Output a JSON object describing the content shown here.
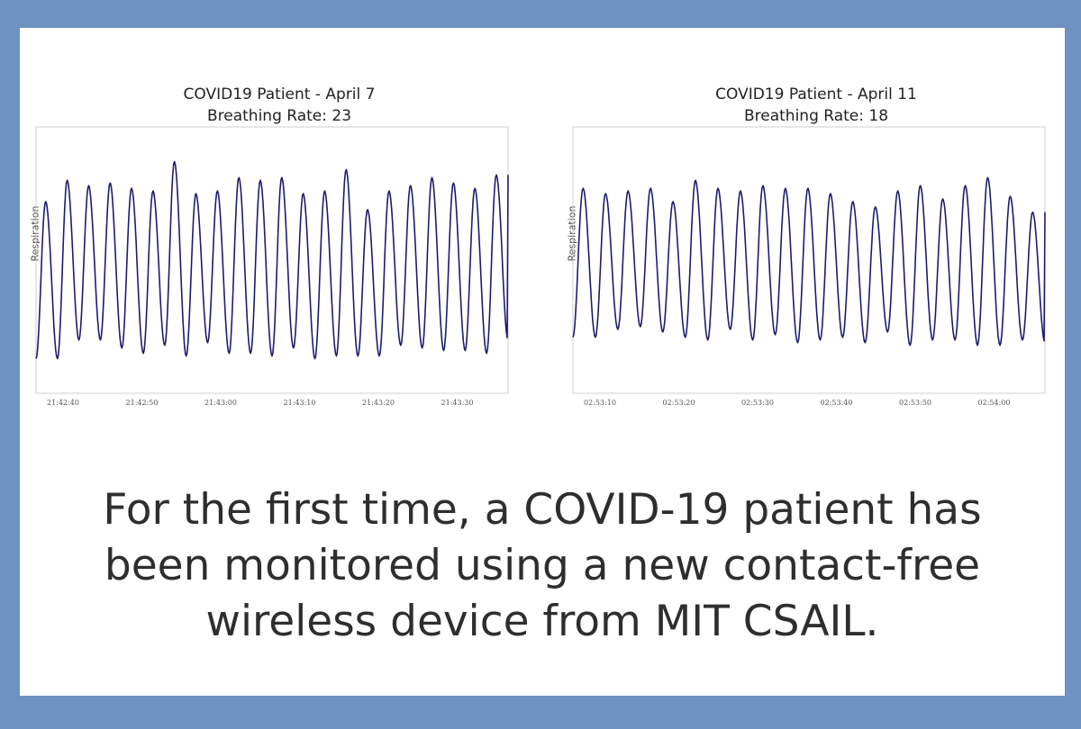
{
  "caption_lines": [
    "For the first time, a COVID-19 patient has",
    "been monitored using a new contact-free",
    "wireless device from MIT CSAIL."
  ],
  "chart_data": [
    {
      "type": "line",
      "title": "COVID19 Patient - April 7",
      "subtitle": "Breathing Rate: 23",
      "ylabel": "Respiration",
      "xlabel": "",
      "tick_labels": [
        "21:42:40",
        "21:42:50",
        "21:43:00",
        "21:43:10",
        "21:43:20",
        "21:43:30"
      ],
      "grid": false,
      "line_color": "#1c1c6e",
      "series": [
        {
          "peaks": [
            0.72,
            0.8,
            0.78,
            0.79,
            0.77,
            0.76,
            0.87,
            0.75,
            0.76,
            0.81,
            0.8,
            0.81,
            0.75,
            0.76,
            0.84,
            0.69,
            0.76,
            0.78,
            0.81,
            0.79,
            0.77,
            0.82
          ],
          "troughs": [
            0.13,
            0.2,
            0.2,
            0.17,
            0.15,
            0.18,
            0.14,
            0.19,
            0.15,
            0.15,
            0.14,
            0.17,
            0.13,
            0.14,
            0.14,
            0.14,
            0.18,
            0.17,
            0.16,
            0.16,
            0.15,
            0.2
          ]
        }
      ]
    },
    {
      "type": "line",
      "title": "COVID19 Patient - April 11",
      "subtitle": "Breathing Rate: 18",
      "ylabel": "Respiration",
      "xlabel": "",
      "tick_labels": [
        "02:53:10",
        "02:53:20",
        "02:53:30",
        "02:53:40",
        "02:53:50",
        "02:54:00"
      ],
      "grid": false,
      "line_color": "#1c1c6e",
      "series": [
        {
          "peaks": [
            0.77,
            0.75,
            0.76,
            0.77,
            0.72,
            0.8,
            0.77,
            0.76,
            0.78,
            0.77,
            0.77,
            0.75,
            0.72,
            0.7,
            0.76,
            0.78,
            0.73,
            0.78,
            0.81,
            0.74,
            0.68
          ],
          "troughs": [
            0.21,
            0.24,
            0.25,
            0.23,
            0.21,
            0.2,
            0.24,
            0.2,
            0.22,
            0.19,
            0.2,
            0.21,
            0.19,
            0.23,
            0.18,
            0.2,
            0.2,
            0.18,
            0.18,
            0.2,
            0.19
          ]
        }
      ]
    }
  ]
}
